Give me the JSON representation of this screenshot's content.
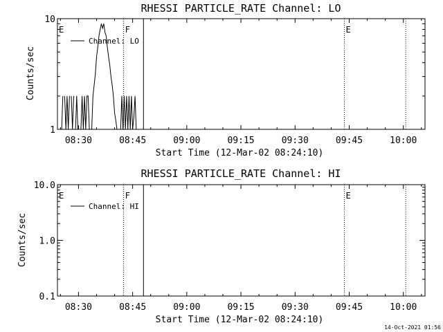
{
  "timestamp": "14-Oct-2021 01:56",
  "colors": {
    "background": "#ffffff",
    "foreground": "#000000"
  },
  "chart_data": [
    {
      "type": "line",
      "title": "RHESSI PARTICLE_RATE Channel: LO",
      "xlabel": "Start Time (12-Mar-02 08:24:10)",
      "ylabel": "Counts/sec",
      "yscale": "log",
      "ylim": [
        1,
        10
      ],
      "y_tick_values": [
        1,
        10
      ],
      "y_tick_labels": [
        "1",
        "10"
      ],
      "xlim": [
        "08:24:10",
        "10:06:00"
      ],
      "x_tick_labels": [
        "08:30",
        "08:45",
        "09:00",
        "09:15",
        "09:30",
        "09:45",
        "10:00"
      ],
      "legend": {
        "position": "top-left",
        "entries": [
          "Channel: LO"
        ]
      },
      "grid": false,
      "markers": [
        {
          "label": "E",
          "time": "08:24:10",
          "style": "none"
        },
        {
          "label": "F",
          "time": "08:42:30",
          "style": "dotted"
        },
        {
          "label": "",
          "time": "08:48:00",
          "style": "solid"
        },
        {
          "label": "E",
          "time": "09:43:40",
          "style": "dotted"
        },
        {
          "label": "",
          "time": "10:00:40",
          "style": "dotted"
        }
      ],
      "series": [
        {
          "values": [
            [
              "08:25:20",
              1
            ],
            [
              "08:25:40",
              2
            ],
            [
              "08:26:10",
              2
            ],
            [
              "08:26:30",
              1
            ],
            [
              "08:26:50",
              2
            ],
            [
              "08:27:10",
              1
            ],
            [
              "08:27:30",
              2
            ],
            [
              "08:28:00",
              2
            ],
            [
              "08:28:20",
              1
            ],
            [
              "08:28:40",
              2
            ],
            [
              "08:29:10",
              1
            ],
            [
              "08:29:30",
              2
            ],
            [
              "08:29:50",
              1
            ],
            [
              "08:30:40",
              1
            ],
            [
              "08:31:00",
              2
            ],
            [
              "08:31:20",
              1
            ],
            [
              "08:31:40",
              2
            ],
            [
              "08:32:00",
              1
            ],
            [
              "08:32:20",
              2
            ],
            [
              "08:32:40",
              2
            ],
            [
              "08:33:00",
              1
            ],
            [
              "08:33:40",
              1
            ],
            [
              "08:34:00",
              2
            ],
            [
              "08:34:20",
              2.5
            ],
            [
              "08:34:40",
              3.2
            ],
            [
              "08:35:00",
              4.5
            ],
            [
              "08:35:20",
              5.5
            ],
            [
              "08:35:40",
              7
            ],
            [
              "08:36:00",
              8
            ],
            [
              "08:36:20",
              9
            ],
            [
              "08:36:40",
              8.2
            ],
            [
              "08:37:00",
              9
            ],
            [
              "08:37:20",
              7.5
            ],
            [
              "08:37:40",
              7
            ],
            [
              "08:38:00",
              5.5
            ],
            [
              "08:38:20",
              4.5
            ],
            [
              "08:38:40",
              3.8
            ],
            [
              "08:39:00",
              3
            ],
            [
              "08:39:20",
              2.5
            ],
            [
              "08:39:40",
              2
            ],
            [
              "08:40:00",
              1.4
            ],
            [
              "08:40:20",
              1.2
            ],
            [
              "08:40:40",
              1
            ],
            [
              "08:41:40",
              1
            ],
            [
              "08:42:00",
              2
            ],
            [
              "08:42:20",
              1
            ],
            [
              "08:42:40",
              2
            ],
            [
              "08:43:00",
              1
            ],
            [
              "08:43:20",
              2
            ],
            [
              "08:43:40",
              1
            ],
            [
              "08:44:00",
              2
            ],
            [
              "08:44:20",
              1
            ],
            [
              "08:44:40",
              2
            ],
            [
              "08:45:00",
              1
            ],
            [
              "08:45:20",
              1.3
            ],
            [
              "08:45:40",
              2
            ],
            [
              "08:46:00",
              1
            ]
          ]
        }
      ]
    },
    {
      "type": "line",
      "title": "RHESSI PARTICLE_RATE Channel: HI",
      "xlabel": "Start Time (12-Mar-02 08:24:10)",
      "ylabel": "Counts/sec",
      "yscale": "log",
      "ylim": [
        0.1,
        10
      ],
      "y_tick_values": [
        0.1,
        1,
        10
      ],
      "y_tick_labels": [
        "0.1",
        "1.0",
        "10.0"
      ],
      "xlim": [
        "08:24:10",
        "10:06:00"
      ],
      "x_tick_labels": [
        "08:30",
        "08:45",
        "09:00",
        "09:15",
        "09:30",
        "09:45",
        "10:00"
      ],
      "legend": {
        "position": "top-left",
        "entries": [
          "Channel: HI"
        ]
      },
      "grid": false,
      "markers": [
        {
          "label": "E",
          "time": "08:24:10",
          "style": "none"
        },
        {
          "label": "F",
          "time": "08:42:30",
          "style": "dotted"
        },
        {
          "label": "",
          "time": "08:48:00",
          "style": "solid"
        },
        {
          "label": "E",
          "time": "09:43:40",
          "style": "dotted"
        },
        {
          "label": "",
          "time": "10:00:40",
          "style": "dotted"
        }
      ],
      "series": []
    }
  ]
}
